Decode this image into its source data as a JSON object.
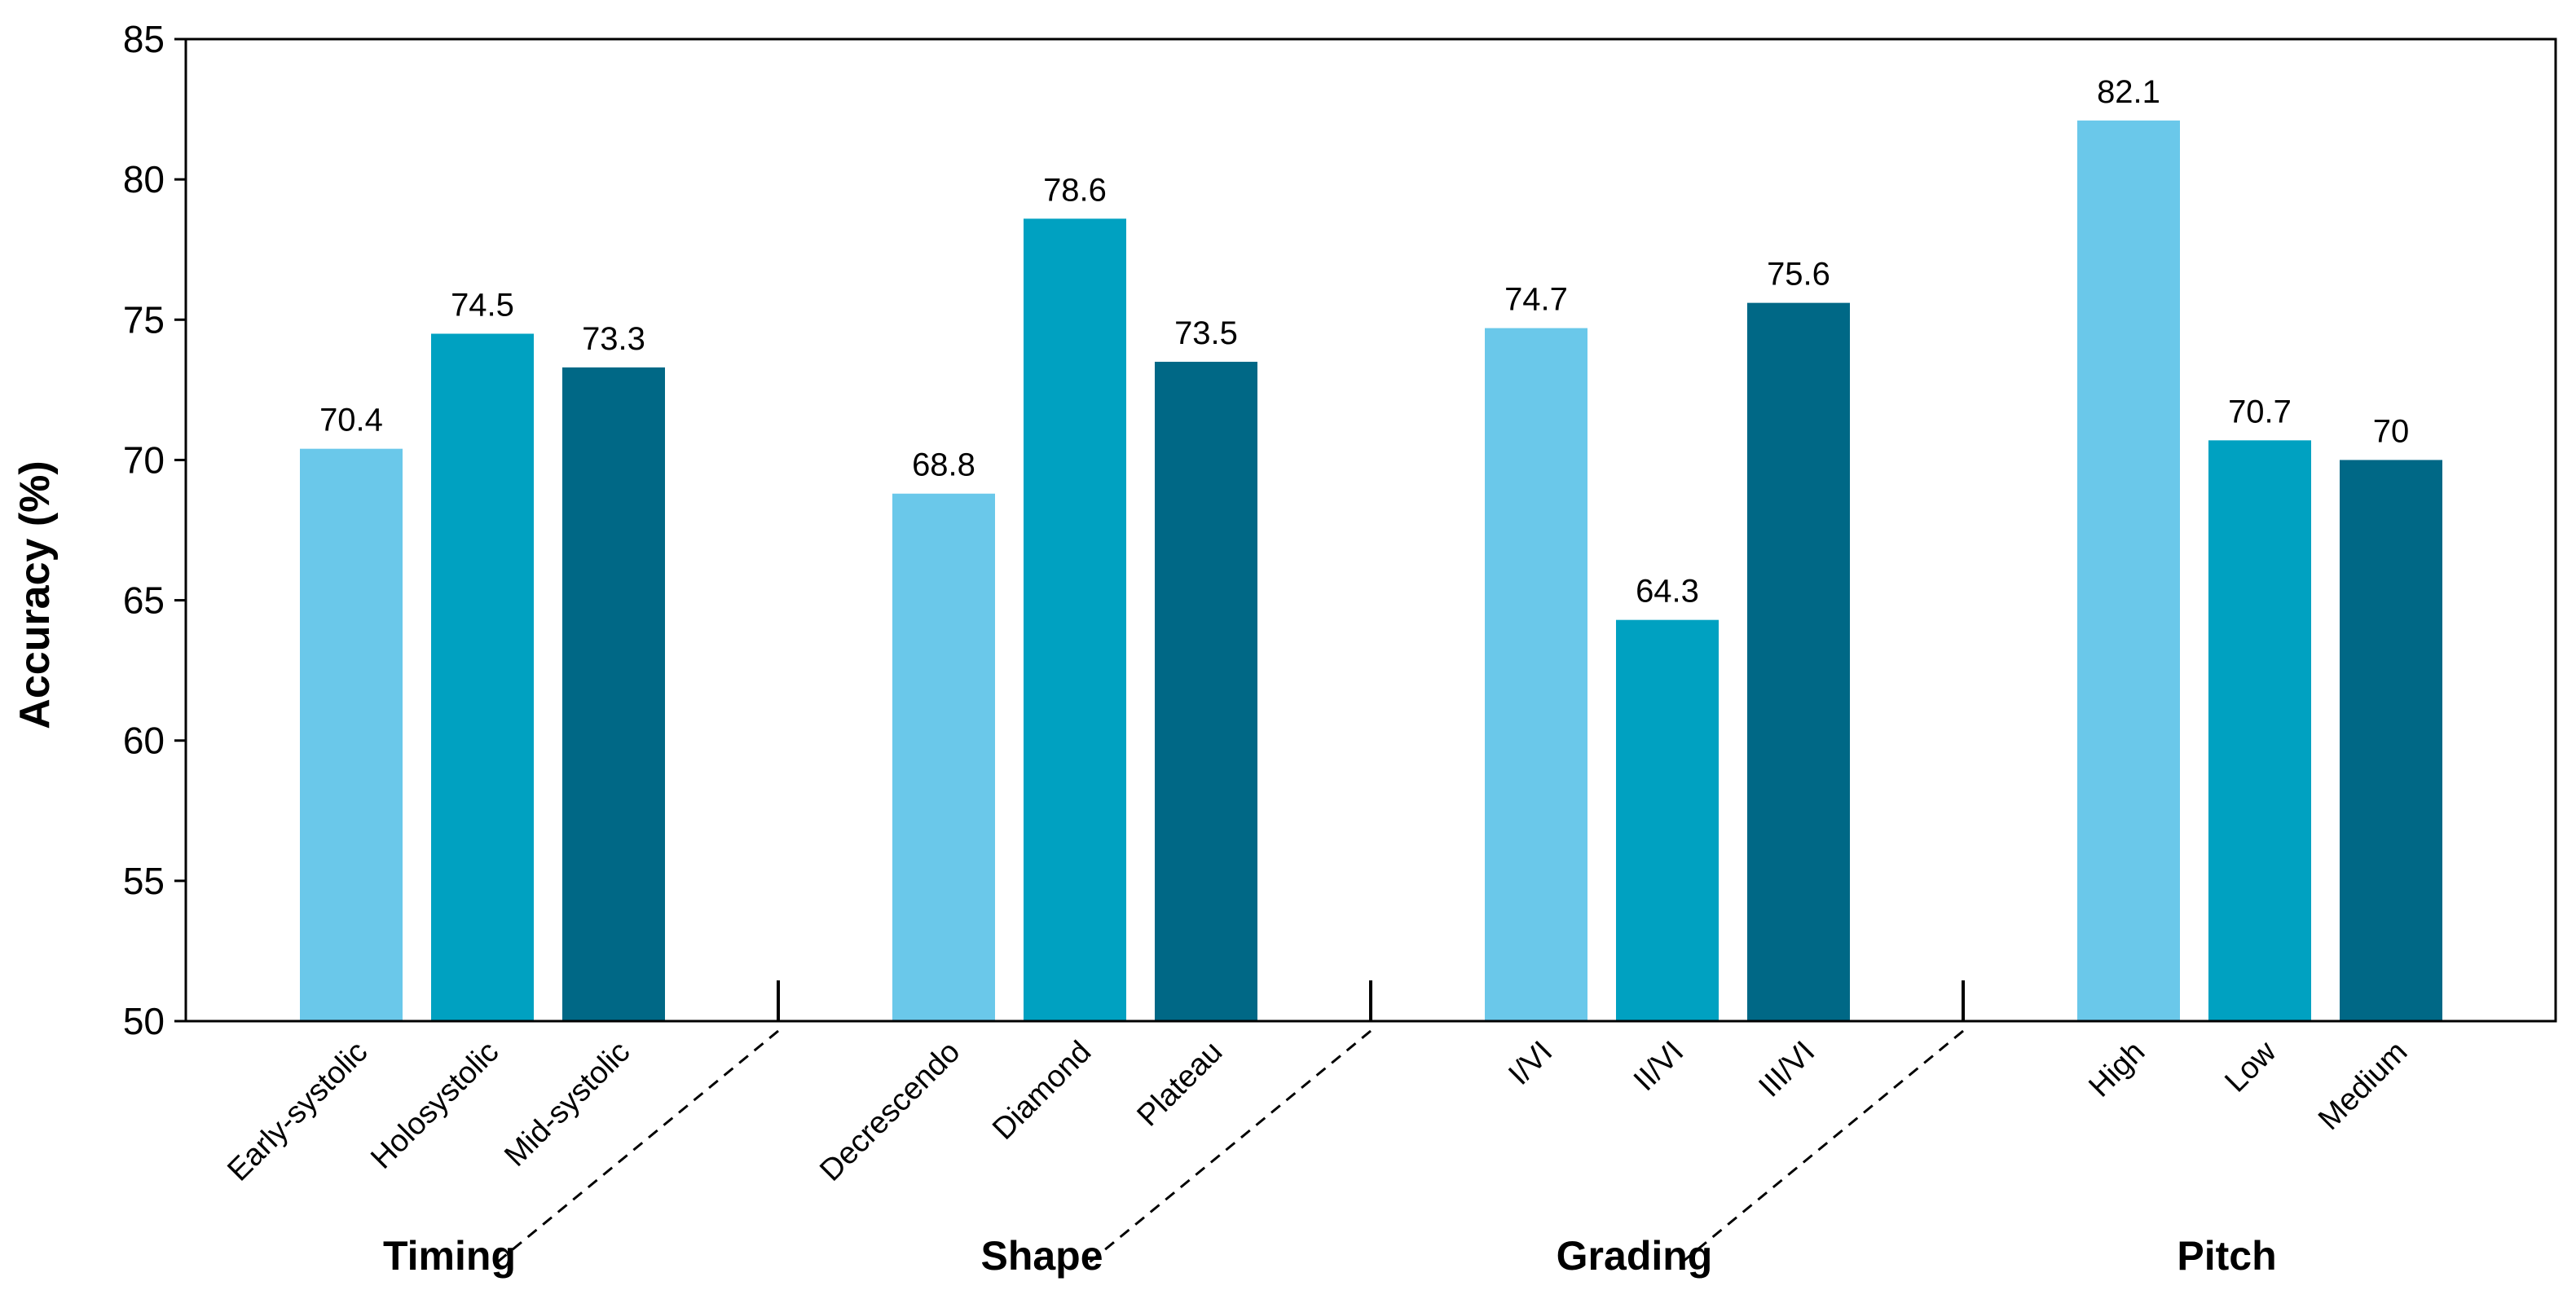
{
  "chart_data": {
    "type": "bar",
    "title": "",
    "xlabel": "",
    "ylabel": "Accuracy (%)",
    "ylim": [
      50,
      85
    ],
    "yticks": [
      50,
      55,
      60,
      65,
      70,
      75,
      80,
      85
    ],
    "grid": false,
    "legend": "none",
    "colors": [
      "#6ac8ea",
      "#00a1c1",
      "#006886"
    ],
    "groups": [
      {
        "name": "Timing",
        "categories": [
          "Early-systolic",
          "Holosystolic",
          "Mid-systolic"
        ],
        "values": [
          70.4,
          74.5,
          73.3
        ]
      },
      {
        "name": "Shape",
        "categories": [
          "Decrescendo",
          "Diamond",
          "Plateau"
        ],
        "values": [
          68.8,
          78.6,
          73.5
        ]
      },
      {
        "name": "Grading",
        "categories": [
          "I/VI",
          "II/VI",
          "III/VI"
        ],
        "values": [
          74.7,
          64.3,
          75.6
        ]
      },
      {
        "name": "Pitch",
        "categories": [
          "High",
          "Low",
          "Medium"
        ],
        "values": [
          82.1,
          70.7,
          70
        ]
      }
    ]
  }
}
